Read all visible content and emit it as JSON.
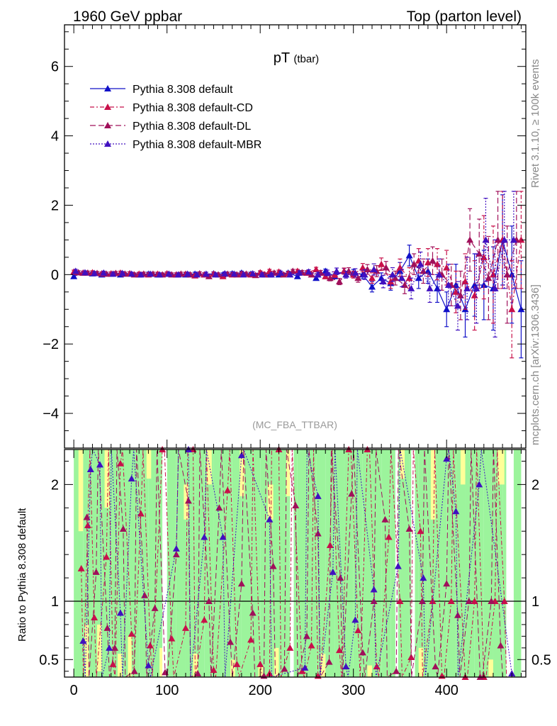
{
  "header": {
    "left": "1960 GeV ppbar",
    "right": "Top (parton level)"
  },
  "side_labels": {
    "rivet": "Rivet 3.1.10, ≥ 100k events",
    "mcplots": "mcplots.cern.ch [arXiv:1306.3436]"
  },
  "chart_data": {
    "type": "line",
    "title": "pT (tbar)",
    "title_main": "pT",
    "title_sub": "(tbar)",
    "watermark": "(MC_FBA_TTBAR)",
    "legend_position": "top-left",
    "xlim": [
      -10,
      485
    ],
    "main": {
      "ylim": [
        -5,
        7.2
      ],
      "yticks": [
        -4,
        -2,
        0,
        2,
        4,
        6
      ],
      "ytick_labels": [
        "−4",
        "−2",
        "0",
        "2",
        "4",
        "6"
      ]
    },
    "ratio": {
      "ylabel": "Ratio to Pythia 8.308 default",
      "ylim": [
        0.35,
        2.3
      ],
      "yticks": [
        0.5,
        1,
        2
      ],
      "ytick_labels": [
        "0.5",
        "1",
        "2"
      ]
    },
    "xticks": [
      0,
      100,
      200,
      300,
      400
    ],
    "xtick_labels": [
      "0",
      "100",
      "200",
      "300",
      "400"
    ],
    "series": [
      {
        "name": "Pythia 8.308 default",
        "color": "#1010c8",
        "dash": "",
        "x": [
          0,
          10,
          20,
          30,
          40,
          50,
          60,
          70,
          80,
          90,
          100,
          110,
          120,
          130,
          140,
          150,
          160,
          170,
          180,
          190,
          200,
          210,
          220,
          230,
          240,
          250,
          260,
          270,
          280,
          290,
          300,
          310,
          320,
          330,
          340,
          350,
          360,
          370,
          380,
          390,
          400,
          410,
          420,
          430,
          440,
          450,
          460,
          470,
          480
        ],
        "y": [
          -0.05,
          0.05,
          0.03,
          0.0,
          0.02,
          0.0,
          0.03,
          0.0,
          0.02,
          0.0,
          0.02,
          0.0,
          0.0,
          0.02,
          0.0,
          0.03,
          0.0,
          0.03,
          0.05,
          0.02,
          0.05,
          0.0,
          0.0,
          0.05,
          -0.05,
          0.05,
          -0.1,
          0.1,
          -0.05,
          0.1,
          0.05,
          0.0,
          -0.35,
          -0.1,
          -0.25,
          0.1,
          0.55,
          -0.1,
          0.1,
          -0.4,
          -1.0,
          -0.3,
          -1.0,
          -0.3,
          -0.3,
          -0.4,
          1.0,
          0.0,
          -1.0
        ],
        "err": [
          0.05,
          0.05,
          0.05,
          0.05,
          0.05,
          0.05,
          0.05,
          0.05,
          0.05,
          0.05,
          0.05,
          0.05,
          0.05,
          0.05,
          0.05,
          0.05,
          0.05,
          0.05,
          0.05,
          0.05,
          0.05,
          0.05,
          0.05,
          0.05,
          0.05,
          0.06,
          0.06,
          0.06,
          0.07,
          0.08,
          0.1,
          0.12,
          0.15,
          0.15,
          0.2,
          0.25,
          0.3,
          0.3,
          0.35,
          0.4,
          0.5,
          0.6,
          0.8,
          0.9,
          1.0,
          1.2,
          1.3,
          1.4,
          1.4
        ]
      },
      {
        "name": "Pythia 8.308 default-CD",
        "color": "#c8104a",
        "dash": "6,3,2,3",
        "x": [
          0,
          10,
          20,
          30,
          40,
          50,
          60,
          70,
          80,
          90,
          100,
          110,
          120,
          130,
          140,
          150,
          160,
          170,
          180,
          190,
          200,
          210,
          220,
          230,
          240,
          250,
          260,
          270,
          280,
          290,
          300,
          310,
          320,
          330,
          340,
          350,
          360,
          370,
          380,
          390,
          400,
          410,
          420,
          430,
          440,
          450,
          460,
          470,
          480
        ],
        "y": [
          0.08,
          0.05,
          0.06,
          0.03,
          0.03,
          0.05,
          0.03,
          0.02,
          0.0,
          0.02,
          0.03,
          0.0,
          0.02,
          -0.03,
          0.0,
          0.02,
          -0.05,
          0.0,
          0.02,
          0.0,
          0.06,
          0.1,
          0.08,
          0.03,
          0.1,
          0.05,
          0.15,
          -0.05,
          0.0,
          0.1,
          0.0,
          0.2,
          -0.1,
          0.3,
          -0.2,
          0.2,
          -0.1,
          0.4,
          0.35,
          0.3,
          0.2,
          -0.5,
          -0.2,
          -0.6,
          0.5,
          0.0,
          1.0,
          -1.0,
          1.0
        ],
        "err": [
          0.05,
          0.05,
          0.05,
          0.05,
          0.05,
          0.05,
          0.05,
          0.05,
          0.05,
          0.05,
          0.05,
          0.05,
          0.05,
          0.05,
          0.05,
          0.05,
          0.05,
          0.05,
          0.05,
          0.05,
          0.05,
          0.05,
          0.05,
          0.05,
          0.05,
          0.06,
          0.06,
          0.07,
          0.08,
          0.09,
          0.1,
          0.12,
          0.15,
          0.18,
          0.2,
          0.25,
          0.3,
          0.35,
          0.4,
          0.45,
          0.5,
          0.6,
          0.8,
          1.0,
          1.2,
          1.4,
          1.4,
          1.4,
          1.4
        ]
      },
      {
        "name": "Pythia 8.308 default-DL",
        "color": "#a0105a",
        "dash": "8,4",
        "x": [
          5,
          15,
          25,
          35,
          45,
          55,
          65,
          75,
          85,
          95,
          105,
          115,
          125,
          135,
          145,
          155,
          165,
          175,
          185,
          195,
          205,
          215,
          225,
          235,
          245,
          255,
          265,
          275,
          285,
          295,
          305,
          315,
          325,
          335,
          345,
          355,
          365,
          375,
          385,
          395,
          405,
          415,
          425,
          435,
          445,
          455,
          465,
          475
        ],
        "y": [
          0.06,
          0.05,
          0.04,
          0.02,
          0.04,
          0.02,
          0.0,
          0.02,
          0.02,
          0.0,
          0.0,
          0.02,
          0.0,
          0.03,
          -0.05,
          0.0,
          0.02,
          0.0,
          0.02,
          -0.02,
          0.0,
          0.05,
          0.0,
          0.1,
          0.06,
          0.0,
          0.05,
          -0.1,
          -0.2,
          0.1,
          -0.1,
          0.15,
          0.1,
          0.2,
          -0.1,
          -0.3,
          0.3,
          0.1,
          0.4,
          0.0,
          -0.3,
          -0.6,
          1.0,
          0.6,
          -0.1,
          1.0,
          0.0,
          1.0
        ],
        "err": [
          0.05,
          0.05,
          0.05,
          0.05,
          0.05,
          0.05,
          0.05,
          0.05,
          0.05,
          0.05,
          0.05,
          0.05,
          0.05,
          0.05,
          0.05,
          0.05,
          0.05,
          0.05,
          0.05,
          0.05,
          0.05,
          0.05,
          0.05,
          0.05,
          0.06,
          0.06,
          0.07,
          0.08,
          0.09,
          0.1,
          0.12,
          0.14,
          0.16,
          0.18,
          0.2,
          0.25,
          0.3,
          0.35,
          0.4,
          0.45,
          0.6,
          0.7,
          0.9,
          1.0,
          1.2,
          1.4,
          1.4,
          1.4
        ]
      },
      {
        "name": "Pythia 8.308 default-MBR",
        "color": "#4010c0",
        "dash": "2,2",
        "x": [
          2,
          12,
          22,
          32,
          42,
          52,
          62,
          72,
          82,
          92,
          102,
          112,
          122,
          132,
          142,
          152,
          162,
          172,
          182,
          192,
          202,
          212,
          222,
          232,
          242,
          252,
          262,
          272,
          282,
          292,
          302,
          312,
          322,
          332,
          342,
          352,
          362,
          372,
          382,
          392,
          402,
          412,
          422,
          432,
          442,
          452,
          462,
          472
        ],
        "y": [
          0.1,
          0.06,
          0.04,
          0.05,
          0.02,
          0.04,
          0.02,
          0.0,
          0.02,
          0.0,
          0.02,
          0.0,
          0.02,
          0.0,
          0.02,
          0.0,
          0.03,
          0.02,
          0.0,
          0.03,
          0.0,
          0.0,
          0.05,
          0.0,
          0.05,
          0.08,
          0.0,
          0.05,
          0.1,
          0.0,
          0.05,
          0.0,
          0.15,
          -0.2,
          0.0,
          -0.1,
          -0.4,
          0.3,
          -0.4,
          0.0,
          -0.3,
          -0.9,
          -0.4,
          -0.4,
          1.0,
          -0.4,
          1.0,
          1.0
        ],
        "err": [
          0.05,
          0.05,
          0.05,
          0.05,
          0.05,
          0.05,
          0.05,
          0.05,
          0.05,
          0.05,
          0.05,
          0.05,
          0.05,
          0.05,
          0.05,
          0.05,
          0.05,
          0.05,
          0.05,
          0.05,
          0.05,
          0.05,
          0.05,
          0.05,
          0.06,
          0.06,
          0.07,
          0.08,
          0.09,
          0.1,
          0.12,
          0.14,
          0.16,
          0.18,
          0.2,
          0.25,
          0.3,
          0.35,
          0.4,
          0.45,
          0.6,
          0.7,
          0.9,
          1.0,
          1.2,
          1.4,
          1.4,
          1.4
        ]
      }
    ],
    "ratio_series": [
      {
        "name": "Pythia 8.308 default-CD",
        "x": [
          8,
          15,
          22,
          35,
          42,
          50,
          62,
          72,
          82,
          95,
          105,
          120,
          128,
          140,
          150,
          165,
          175,
          190,
          200,
          210,
          220,
          232,
          245,
          255,
          262,
          275,
          285,
          295,
          305,
          315,
          325,
          338,
          350,
          362,
          372,
          385,
          395,
          405,
          420,
          430,
          440,
          452,
          462
        ],
        "y": [
          1.28,
          1.65,
          0.86,
          1.38,
          0.46,
          2.18,
          0.72,
          1.75,
          0.62,
          2.3,
          0.68,
          0.77,
          2.3,
          0.84,
          0.41,
          1.95,
          0.46,
          0.67,
          0.46,
          0.38,
          2.3,
          0.6,
          0.4,
          0.62,
          0.36,
          1.48,
          0.58,
          2.3,
          0.75,
          2.3,
          0.44,
          1.55,
          1.0,
          0.52,
          1.6,
          1.0,
          0.36,
          1.0,
          0.34,
          1.0,
          0.34,
          1.0,
          1.0
        ]
      },
      {
        "name": "Pythia 8.308 default-DL",
        "x": [
          14,
          24,
          36,
          44,
          53,
          65,
          76,
          87,
          98,
          110,
          123,
          133,
          145,
          156,
          168,
          180,
          192,
          204,
          214,
          226,
          238,
          250,
          262,
          274,
          286,
          298,
          310,
          322,
          334,
          346,
          360,
          374,
          388,
          400,
          412,
          424,
          436,
          448,
          458
        ],
        "y": [
          1.72,
          1.25,
          0.77,
          0.6,
          1.62,
          0.4,
          1.05,
          0.94,
          0.39,
          1.4,
          1.86,
          0.38,
          1.0,
          1.8,
          0.65,
          1.15,
          0.9,
          0.36,
          1.3,
          0.42,
          1.82,
          0.7,
          1.58,
          0.48,
          1.2,
          1.92,
          0.56,
          1.0,
          1.7,
          0.4,
          1.62,
          1.0,
          0.44,
          1.15,
          0.88,
          1.0,
          0.34,
          1.0,
          0.62
        ]
      },
      {
        "name": "Pythia 8.308 default-MBR",
        "x": [
          10,
          18,
          28,
          38,
          50,
          62,
          80,
          110,
          123,
          140,
          160,
          180,
          210,
          248,
          262,
          278,
          292,
          302,
          322,
          348,
          375,
          400,
          410,
          435,
          470
        ],
        "y": [
          0.66,
          2.13,
          2.17,
          0.6,
          0.9,
          2.05,
          0.45,
          1.45,
          2.3,
          1.55,
          1.55,
          2.25,
          1.7,
          0.43,
          1.9,
          1.25,
          0.44,
          0.84,
          1.1,
          1.3,
          1.2,
          2.22,
          1.77,
          2.0,
          0.38
        ]
      }
    ],
    "bands": {
      "x_edges": [
        0,
        10,
        20,
        30,
        40,
        50,
        60,
        70,
        80,
        90,
        100,
        110,
        120,
        130,
        140,
        150,
        160,
        170,
        180,
        190,
        200,
        210,
        220,
        230,
        240,
        250,
        260,
        270,
        280,
        290,
        300,
        310,
        320,
        330,
        340,
        350,
        360,
        370,
        380,
        390,
        400,
        410,
        420,
        430,
        440,
        450,
        460,
        470,
        480
      ],
      "green_hi": [
        2.3,
        2.3,
        2.3,
        2.3,
        2.3,
        2.3,
        2.3,
        2.3,
        2.3,
        2.3,
        2.3,
        2.3,
        2.3,
        2.3,
        2.3,
        2.3,
        2.3,
        2.3,
        2.3,
        2.3,
        2.3,
        2.3,
        2.3,
        2.3,
        2.3,
        2.3,
        2.3,
        2.3,
        2.3,
        2.3,
        2.3,
        2.3,
        2.3,
        2.3,
        2.3,
        2.3,
        2.3,
        2.3,
        2.3,
        2.3,
        2.3,
        2.3,
        2.3,
        2.3,
        2.3,
        2.3,
        2.3,
        2.3
      ],
      "green_lo": [
        0.35,
        0.35,
        0.35,
        0.35,
        0.35,
        0.35,
        0.35,
        0.35,
        0.35,
        0.35,
        0.35,
        0.35,
        0.35,
        0.35,
        0.35,
        0.35,
        0.35,
        0.35,
        0.35,
        0.35,
        0.35,
        0.35,
        0.35,
        0.35,
        0.35,
        0.35,
        0.35,
        0.35,
        0.35,
        0.35,
        0.35,
        0.35,
        0.35,
        0.35,
        0.35,
        0.35,
        0.35,
        0.35,
        0.35,
        0.35,
        0.35,
        0.35,
        0.35,
        0.35,
        0.35,
        0.35,
        0.35,
        0.35
      ],
      "yellow_regions": [
        [
          5,
          10,
          1.6,
          2.3
        ],
        [
          12,
          16,
          0.35,
          0.8
        ],
        [
          25,
          30,
          0.4,
          0.8
        ],
        [
          33,
          38,
          1.8,
          2.3
        ],
        [
          47,
          52,
          0.35,
          0.55
        ],
        [
          58,
          62,
          0.35,
          0.7
        ],
        [
          78,
          83,
          2.05,
          2.3
        ],
        [
          92,
          97,
          0.35,
          0.6
        ],
        [
          118,
          123,
          1.7,
          2.0
        ],
        [
          128,
          133,
          0.35,
          0.55
        ],
        [
          143,
          148,
          2.0,
          2.3
        ],
        [
          168,
          173,
          0.35,
          0.5
        ],
        [
          178,
          183,
          1.9,
          2.3
        ],
        [
          198,
          203,
          0.35,
          0.45
        ],
        [
          208,
          214,
          1.7,
          2.0
        ],
        [
          215,
          220,
          0.35,
          0.6
        ],
        [
          228,
          233,
          1.9,
          2.3
        ],
        [
          265,
          270,
          0.35,
          0.55
        ],
        [
          315,
          320,
          0.35,
          0.45
        ],
        [
          350,
          355,
          2.05,
          2.3
        ],
        [
          370,
          375,
          0.35,
          0.6
        ],
        [
          383,
          388,
          1.7,
          2.3
        ],
        [
          415,
          420,
          2.0,
          2.3
        ],
        [
          445,
          450,
          0.35,
          0.5
        ],
        [
          455,
          462,
          2.0,
          2.3
        ]
      ],
      "white_gaps": [
        [
          95,
          100
        ],
        [
          232,
          236
        ],
        [
          345,
          348
        ],
        [
          362,
          366
        ],
        [
          464,
          472
        ]
      ]
    }
  }
}
